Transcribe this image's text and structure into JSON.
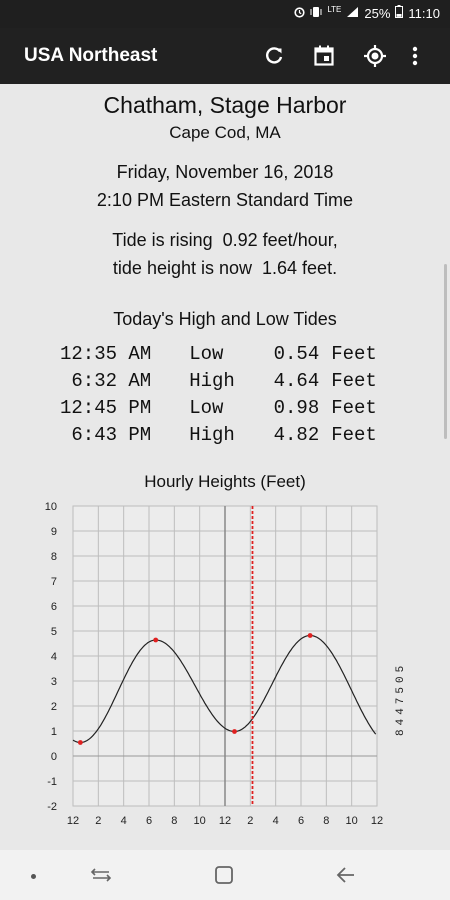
{
  "status": {
    "lte": "LTE",
    "battery": "25%",
    "time": "11:10"
  },
  "appbar": {
    "title": "USA Northeast"
  },
  "location": {
    "name": "Chatham, Stage Harbor",
    "region": "Cape Cod, MA"
  },
  "datetime": {
    "date": "Friday, November 16, 2018",
    "time": "2:10 PM Eastern Standard Time"
  },
  "tide_status": {
    "line1": "Tide is rising  0.92 feet/hour,",
    "line2": "tide height is now  1.64 feet."
  },
  "tides": {
    "heading": "Today's High and Low Tides",
    "rows": [
      {
        "time": "12:35 AM",
        "type": "Low",
        "height": "0.54",
        "unit": "Feet"
      },
      {
        "time": "6:32 AM",
        "type": "High",
        "height": "4.64",
        "unit": "Feet"
      },
      {
        "time": "12:45 PM",
        "type": "Low",
        "height": "0.98",
        "unit": "Feet"
      },
      {
        "time": "6:43 PM",
        "type": "High",
        "height": "4.82",
        "unit": "Feet"
      }
    ]
  },
  "chart_data": {
    "type": "line",
    "title": "Hourly Heights (Feet)",
    "xlabel": "",
    "ylabel": "",
    "side_label": "8447505",
    "xlim": [
      0,
      24
    ],
    "ylim": [
      -2,
      10
    ],
    "x_ticks": [
      "12",
      "2",
      "4",
      "6",
      "8",
      "10",
      "12",
      "2",
      "4",
      "6",
      "8",
      "10",
      "12"
    ],
    "y_ticks": [
      "10",
      "9",
      "8",
      "7",
      "6",
      "5",
      "4",
      "3",
      "2",
      "1",
      "0",
      "-1",
      "-2"
    ],
    "grid": true,
    "current_time_hours": 14.17,
    "noon_hours": 12,
    "extremes": [
      {
        "x": 0.58,
        "y": 0.54
      },
      {
        "x": 6.53,
        "y": 4.64
      },
      {
        "x": 12.75,
        "y": 0.98
      },
      {
        "x": 18.72,
        "y": 4.82
      }
    ],
    "colors": {
      "curve": "#222222",
      "marker": "#e02020",
      "now_line": "#e02020",
      "grid": "#bdbdbd"
    }
  }
}
